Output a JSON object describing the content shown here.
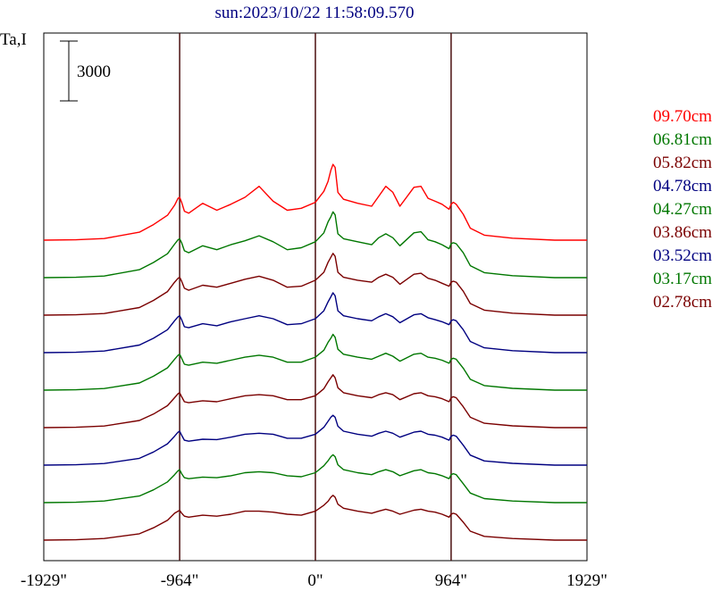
{
  "chart_data": {
    "type": "line",
    "title": "sun:2023/10/22 11:58:09.570",
    "ylabel": "Ta,I",
    "scale_bar_label": "3000",
    "x_ticks": [
      "-1929\"",
      "-964\"",
      "0\"",
      "964\"",
      "1929\""
    ],
    "x_tick_values": [
      -1929,
      -964,
      0,
      964,
      1929
    ],
    "xlim": [
      -1929,
      1929
    ],
    "marker_lines_x": [
      -964,
      0,
      964
    ],
    "marker_line_color": "#4a0f0f",
    "x": [
      -1929,
      -1700,
      -1500,
      -1250,
      -1150,
      -1050,
      -1000,
      -975,
      -964,
      -950,
      -930,
      -900,
      -800,
      -700,
      -600,
      -500,
      -400,
      -300,
      -200,
      -100,
      0,
      60,
      90,
      110,
      125,
      140,
      160,
      200,
      300,
      400,
      450,
      500,
      550,
      600,
      700,
      750,
      800,
      850,
      900,
      950,
      964,
      980,
      1000,
      1050,
      1100,
      1200,
      1400,
      1700,
      1929
    ],
    "series": [
      {
        "name": "09.70cm",
        "color": "#ff0000",
        "values": [
          0,
          20,
          80,
          400,
          780,
          1250,
          1750,
          2100,
          2150,
          1900,
          1450,
          1350,
          1850,
          1500,
          1800,
          2150,
          2700,
          1950,
          1500,
          1600,
          1900,
          2450,
          2950,
          3500,
          3800,
          3650,
          2400,
          2050,
          1850,
          1700,
          2200,
          2700,
          2400,
          1700,
          2650,
          2700,
          2100,
          1950,
          1800,
          1550,
          1800,
          1900,
          1800,
          1300,
          600,
          250,
          100,
          0,
          0
        ]
      },
      {
        "name": "06.81cm",
        "color": "#007700",
        "values": [
          0,
          20,
          80,
          400,
          760,
          1200,
          1680,
          1900,
          1950,
          1750,
          1350,
          1250,
          1600,
          1400,
          1650,
          1850,
          2100,
          1800,
          1400,
          1500,
          1800,
          2250,
          2800,
          3050,
          3300,
          3150,
          2200,
          1950,
          1800,
          1650,
          2000,
          2200,
          2000,
          1600,
          2250,
          2300,
          1900,
          1800,
          1650,
          1450,
          1700,
          1750,
          1700,
          1250,
          600,
          250,
          100,
          0,
          0
        ]
      },
      {
        "name": "05.82cm",
        "color": "#7a0000",
        "values": [
          0,
          20,
          80,
          380,
          740,
          1180,
          1650,
          1850,
          1900,
          1700,
          1350,
          1250,
          1500,
          1400,
          1600,
          1800,
          1950,
          1750,
          1400,
          1450,
          1750,
          2150,
          2650,
          2900,
          3100,
          2950,
          2150,
          1900,
          1750,
          1650,
          1900,
          2050,
          1900,
          1550,
          2050,
          2100,
          1850,
          1750,
          1600,
          1450,
          1650,
          1700,
          1650,
          1200,
          580,
          250,
          100,
          0,
          0
        ]
      },
      {
        "name": "04.78cm",
        "color": "#000080",
        "values": [
          0,
          20,
          80,
          380,
          720,
          1150,
          1600,
          1800,
          1850,
          1650,
          1300,
          1250,
          1450,
          1350,
          1550,
          1700,
          1850,
          1700,
          1400,
          1450,
          1700,
          2100,
          2550,
          2800,
          3000,
          2850,
          2100,
          1850,
          1700,
          1600,
          1800,
          1950,
          1800,
          1500,
          1900,
          1950,
          1750,
          1650,
          1550,
          1400,
          1600,
          1650,
          1600,
          1150,
          560,
          240,
          100,
          0,
          0
        ]
      },
      {
        "name": "04.27cm",
        "color": "#007700",
        "values": [
          0,
          20,
          80,
          360,
          700,
          1120,
          1550,
          1750,
          1800,
          1600,
          1300,
          1250,
          1400,
          1350,
          1500,
          1650,
          1750,
          1650,
          1400,
          1400,
          1650,
          2000,
          2400,
          2600,
          2800,
          2650,
          2050,
          1800,
          1650,
          1550,
          1700,
          1850,
          1700,
          1450,
          1800,
          1850,
          1650,
          1600,
          1500,
          1350,
          1550,
          1600,
          1550,
          1100,
          540,
          230,
          90,
          0,
          0
        ]
      },
      {
        "name": "03.86cm",
        "color": "#7a0000",
        "values": [
          0,
          20,
          80,
          360,
          680,
          1100,
          1500,
          1700,
          1750,
          1550,
          1300,
          1250,
          1350,
          1300,
          1450,
          1600,
          1650,
          1600,
          1400,
          1400,
          1600,
          1950,
          2300,
          2500,
          2650,
          2500,
          2000,
          1750,
          1600,
          1500,
          1650,
          1750,
          1650,
          1400,
          1700,
          1750,
          1600,
          1550,
          1450,
          1300,
          1500,
          1550,
          1500,
          1050,
          520,
          220,
          90,
          0,
          0
        ]
      },
      {
        "name": "03.52cm",
        "color": "#000080",
        "values": [
          0,
          20,
          80,
          340,
          660,
          1070,
          1450,
          1650,
          1700,
          1500,
          1250,
          1200,
          1300,
          1280,
          1400,
          1550,
          1600,
          1550,
          1350,
          1350,
          1550,
          1900,
          2200,
          2400,
          2500,
          2400,
          1950,
          1700,
          1550,
          1450,
          1600,
          1700,
          1600,
          1400,
          1650,
          1700,
          1550,
          1500,
          1400,
          1250,
          1450,
          1500,
          1450,
          1000,
          500,
          210,
          90,
          0,
          0
        ]
      },
      {
        "name": "03.17cm",
        "color": "#007700",
        "values": [
          0,
          20,
          80,
          330,
          640,
          1040,
          1400,
          1600,
          1650,
          1450,
          1250,
          1200,
          1280,
          1250,
          1350,
          1500,
          1550,
          1500,
          1350,
          1300,
          1500,
          1850,
          2100,
          2300,
          2400,
          2300,
          1900,
          1650,
          1500,
          1400,
          1550,
          1650,
          1550,
          1350,
          1600,
          1650,
          1500,
          1450,
          1350,
          1200,
          1400,
          1450,
          1400,
          950,
          480,
          200,
          80,
          0,
          0
        ]
      },
      {
        "name": "02.78cm",
        "color": "#7a0000",
        "values": [
          0,
          20,
          80,
          320,
          620,
          1000,
          1350,
          1450,
          1500,
          1350,
          1200,
          1150,
          1250,
          1200,
          1300,
          1450,
          1450,
          1400,
          1300,
          1250,
          1450,
          1750,
          1950,
          2150,
          2250,
          2150,
          1800,
          1600,
          1450,
          1350,
          1450,
          1550,
          1450,
          1300,
          1500,
          1550,
          1450,
          1400,
          1300,
          1150,
          1300,
          1350,
          1300,
          900,
          450,
          190,
          80,
          0,
          0
        ]
      }
    ]
  }
}
